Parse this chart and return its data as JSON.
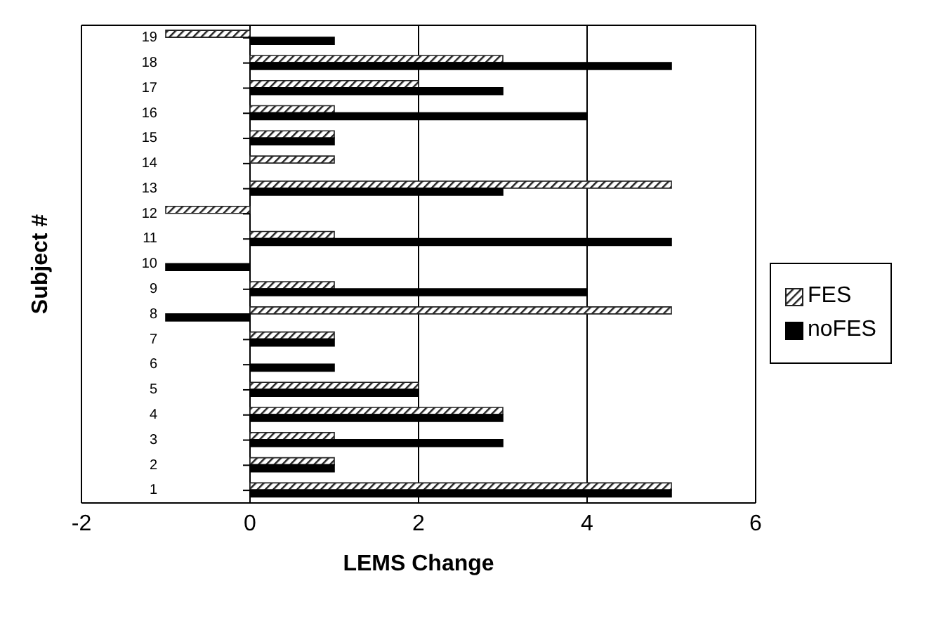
{
  "chart_data": {
    "type": "bar",
    "orientation": "horizontal",
    "xlabel": "LEMS Change",
    "ylabel": "Subject #",
    "categories": [
      "19",
      "18",
      "17",
      "16",
      "15",
      "14",
      "13",
      "12",
      "11",
      "10",
      "9",
      "8",
      "7",
      "6",
      "5",
      "4",
      "3",
      "2",
      "1"
    ],
    "series": [
      {
        "name": "FES",
        "color": "#222222",
        "values": [
          -1,
          3,
          2,
          1,
          1,
          1,
          5,
          -1,
          1,
          0,
          1,
          5,
          1,
          0,
          2,
          3,
          1,
          1,
          5
        ]
      },
      {
        "name": "noFES",
        "color": "#000000",
        "values": [
          1,
          5,
          3,
          4,
          1,
          0,
          3,
          0,
          5,
          -1,
          4,
          -1,
          1,
          1,
          2,
          3,
          3,
          1,
          5
        ]
      }
    ],
    "xlim": [
      -2,
      6
    ],
    "xticks": [
      -2,
      0,
      2,
      4,
      6
    ],
    "grid": "x",
    "legend": "right"
  }
}
